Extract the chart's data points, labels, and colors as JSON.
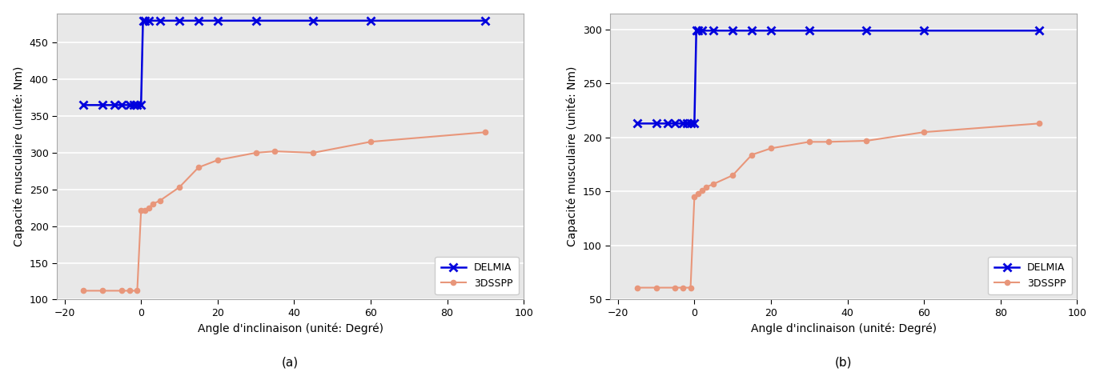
{
  "subplot_a": {
    "delmia_x": [
      -15,
      -10,
      -7,
      -5,
      -3,
      -2,
      -1,
      0,
      0.5,
      1,
      2,
      5,
      10,
      15,
      20,
      30,
      45,
      60,
      90
    ],
    "delmia_y": [
      365,
      365,
      365,
      365,
      365,
      365,
      365,
      365,
      480,
      480,
      480,
      480,
      480,
      480,
      480,
      480,
      480,
      480,
      480
    ],
    "sspp_x": [
      -15,
      -10,
      -5,
      -3,
      -1,
      0,
      1,
      2,
      3,
      5,
      10,
      15,
      20,
      30,
      35,
      45,
      60,
      90
    ],
    "sspp_y": [
      112,
      112,
      112,
      112,
      112,
      221,
      221,
      225,
      230,
      235,
      253,
      280,
      290,
      300,
      302,
      300,
      315,
      328
    ],
    "ylabel": "Capacité musculaire (unité: Nm)",
    "xlabel": "Angle d'inclinaison (unité: Degré)",
    "xlim": [
      -22,
      100
    ],
    "ylim": [
      100,
      490
    ],
    "yticks": [
      100,
      150,
      200,
      250,
      300,
      350,
      400,
      450
    ],
    "xticks": [
      -20,
      0,
      20,
      40,
      60,
      80,
      100
    ],
    "label": "(a)"
  },
  "subplot_b": {
    "delmia_x": [
      -15,
      -10,
      -7,
      -5,
      -3,
      -2,
      -1,
      0,
      0.5,
      1,
      2,
      5,
      10,
      15,
      20,
      30,
      45,
      60,
      90
    ],
    "delmia_y": [
      213,
      213,
      213,
      213,
      213,
      213,
      213,
      213,
      299,
      299,
      299,
      299,
      299,
      299,
      299,
      299,
      299,
      299,
      299
    ],
    "sspp_x": [
      -15,
      -10,
      -5,
      -3,
      -1,
      0,
      1,
      2,
      3,
      5,
      10,
      15,
      20,
      30,
      35,
      45,
      60,
      90
    ],
    "sspp_y": [
      61,
      61,
      61,
      61,
      61,
      145,
      148,
      151,
      154,
      157,
      165,
      184,
      190,
      196,
      196,
      197,
      205,
      213
    ],
    "ylabel": "Capacité musculaire (unité: Nm)",
    "xlabel": "Angle d'inclinaison (unité: Degré)",
    "xlim": [
      -22,
      100
    ],
    "ylim": [
      50,
      315
    ],
    "yticks": [
      50,
      100,
      150,
      200,
      250,
      300
    ],
    "xticks": [
      -20,
      0,
      20,
      40,
      60,
      80,
      100
    ],
    "label": "(b)"
  },
  "delmia_color": "#0000dd",
  "sspp_color": "#e8967a",
  "delmia_label": "DELMIA",
  "sspp_label": "3DSSPP",
  "background_color": "#e8e8e8",
  "grid_color": "#ffffff",
  "figure_facecolor": "#ffffff",
  "spine_color": "#aaaaaa",
  "tick_label_size": 9,
  "axis_label_size": 10,
  "legend_fontsize": 9,
  "label_fontsize": 11
}
